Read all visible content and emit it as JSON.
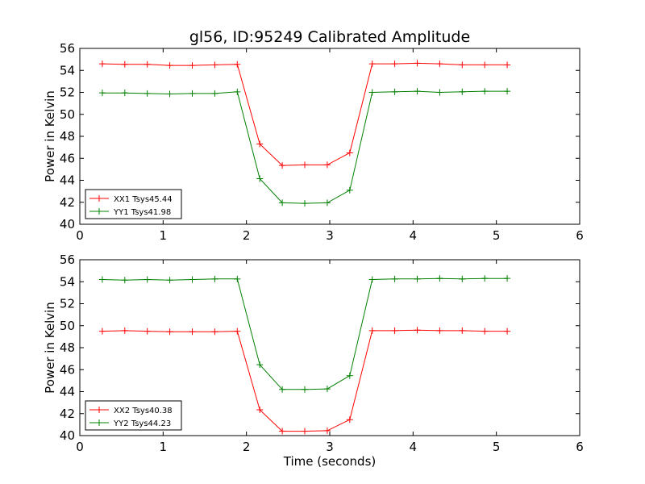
{
  "chart_data": [
    {
      "type": "line",
      "title": "gl56, ID:95249 Calibrated Amplitude",
      "xlabel": "",
      "ylabel": "Power in Kelvin",
      "xlim": [
        0,
        6
      ],
      "ylim": [
        40,
        56
      ],
      "xticks": [
        "0",
        "1",
        "2",
        "3",
        "4",
        "5",
        "6"
      ],
      "yticks": [
        "40",
        "42",
        "44",
        "46",
        "48",
        "50",
        "52",
        "54",
        "56"
      ],
      "legend_position": "lower-left",
      "x": [
        0.27,
        0.54,
        0.81,
        1.08,
        1.35,
        1.62,
        1.89,
        2.16,
        2.43,
        2.7,
        2.97,
        3.24,
        3.51,
        3.78,
        4.05,
        4.32,
        4.59,
        4.86,
        5.13
      ],
      "series": [
        {
          "name": "XX1 Tsys45.44",
          "color": "#ff0000",
          "values": [
            54.6,
            54.55,
            54.55,
            54.45,
            54.45,
            54.5,
            54.55,
            47.3,
            45.35,
            45.4,
            45.4,
            46.5,
            54.6,
            54.6,
            54.65,
            54.6,
            54.5,
            54.5,
            54.5
          ]
        },
        {
          "name": "YY1 Tsys41.98",
          "color": "#008000",
          "values": [
            51.95,
            51.95,
            51.9,
            51.85,
            51.9,
            51.9,
            52.05,
            44.15,
            41.95,
            41.9,
            41.95,
            43.1,
            52.0,
            52.05,
            52.1,
            52.0,
            52.05,
            52.1,
            52.1
          ]
        }
      ]
    },
    {
      "type": "line",
      "title": "",
      "xlabel": "Time (seconds)",
      "ylabel": "Power in Kelvin",
      "xlim": [
        0,
        6
      ],
      "ylim": [
        40,
        56
      ],
      "xticks": [
        "0",
        "1",
        "2",
        "3",
        "4",
        "5",
        "6"
      ],
      "yticks": [
        "40",
        "42",
        "44",
        "46",
        "48",
        "50",
        "52",
        "54",
        "56"
      ],
      "legend_position": "lower-left",
      "x": [
        0.27,
        0.54,
        0.81,
        1.08,
        1.35,
        1.62,
        1.89,
        2.16,
        2.43,
        2.7,
        2.97,
        3.24,
        3.51,
        3.78,
        4.05,
        4.32,
        4.59,
        4.86,
        5.13
      ],
      "series": [
        {
          "name": "XX2 Tsys40.38",
          "color": "#ff0000",
          "values": [
            49.5,
            49.55,
            49.5,
            49.45,
            49.45,
            49.45,
            49.5,
            42.35,
            40.4,
            40.4,
            40.45,
            41.45,
            49.55,
            49.55,
            49.6,
            49.55,
            49.55,
            49.5,
            49.5
          ]
        },
        {
          "name": "YY2 Tsys44.23",
          "color": "#008000",
          "values": [
            54.2,
            54.15,
            54.2,
            54.15,
            54.2,
            54.25,
            54.25,
            46.45,
            44.2,
            44.2,
            44.25,
            45.45,
            54.2,
            54.25,
            54.25,
            54.3,
            54.25,
            54.3,
            54.3
          ]
        }
      ]
    }
  ]
}
